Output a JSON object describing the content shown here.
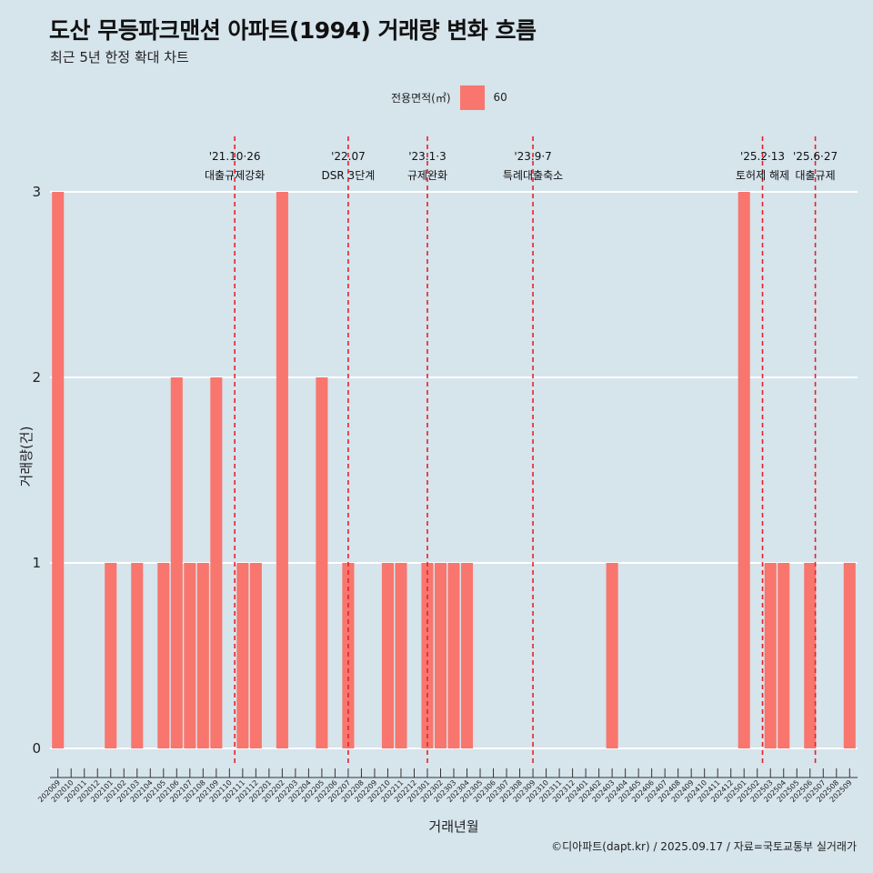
{
  "title": "도산 무등파크맨션 아파트(1994) 거래량 변화 흐름",
  "subtitle": "최근 5년 한정 확대 차트",
  "legend": {
    "title": "전용면적(㎡)",
    "entry": "60"
  },
  "caption": "©디아파트(dapt.kr) / 2025.09.17 / 자료=국토교통부 실거래가",
  "colors": {
    "bar": "#f8766d",
    "background": "#d6e4ec",
    "grid": "#ffffff",
    "event_line": "#e8202a"
  },
  "chart_data": {
    "type": "bar",
    "xlabel": "거래년월",
    "ylabel": "거래량(건)",
    "ylim": [
      0,
      3
    ],
    "yticks": [
      0,
      1,
      2,
      3
    ],
    "grid": true,
    "legend_position": "top",
    "categories": [
      "202009",
      "202010",
      "202011",
      "202012",
      "202101",
      "202102",
      "202103",
      "202104",
      "202105",
      "202106",
      "202107",
      "202108",
      "202109",
      "202110",
      "202111",
      "202112",
      "202201",
      "202202",
      "202203",
      "202204",
      "202205",
      "202206",
      "202207",
      "202208",
      "202209",
      "202210",
      "202211",
      "202212",
      "202301",
      "202302",
      "202303",
      "202304",
      "202305",
      "202306",
      "202307",
      "202308",
      "202309",
      "202310",
      "202311",
      "202312",
      "202401",
      "202402",
      "202403",
      "202404",
      "202405",
      "202406",
      "202407",
      "202408",
      "202409",
      "202410",
      "202411",
      "202412",
      "202501",
      "202502",
      "202503",
      "202504",
      "202505",
      "202506",
      "202507",
      "202508",
      "202509"
    ],
    "series": [
      {
        "name": "60",
        "values": [
          3,
          0,
          0,
          0,
          1,
          0,
          1,
          0,
          1,
          2,
          1,
          1,
          2,
          0,
          1,
          1,
          0,
          3,
          0,
          0,
          2,
          0,
          1,
          0,
          0,
          1,
          1,
          0,
          1,
          1,
          1,
          1,
          0,
          0,
          0,
          0,
          0,
          0,
          0,
          0,
          0,
          0,
          1,
          0,
          0,
          0,
          0,
          0,
          0,
          0,
          0,
          0,
          3,
          0,
          1,
          1,
          0,
          1,
          0,
          0,
          1
        ]
      }
    ],
    "annotations": [
      {
        "position": 13.4,
        "date_label": "'21.10·26",
        "event": "대출규제강화"
      },
      {
        "position": 22.0,
        "date_label": "'22.07",
        "event": "DSR 3단계"
      },
      {
        "position": 28.0,
        "date_label": "'23.1·3",
        "event": "규제완화"
      },
      {
        "position": 36.0,
        "date_label": "'23.9·7",
        "event": "특례대출축소"
      },
      {
        "position": 53.4,
        "date_label": "'25.2·13",
        "event": "토허제 해제"
      },
      {
        "position": 57.4,
        "date_label": "'25.6·27",
        "event": "대출규제"
      }
    ]
  }
}
